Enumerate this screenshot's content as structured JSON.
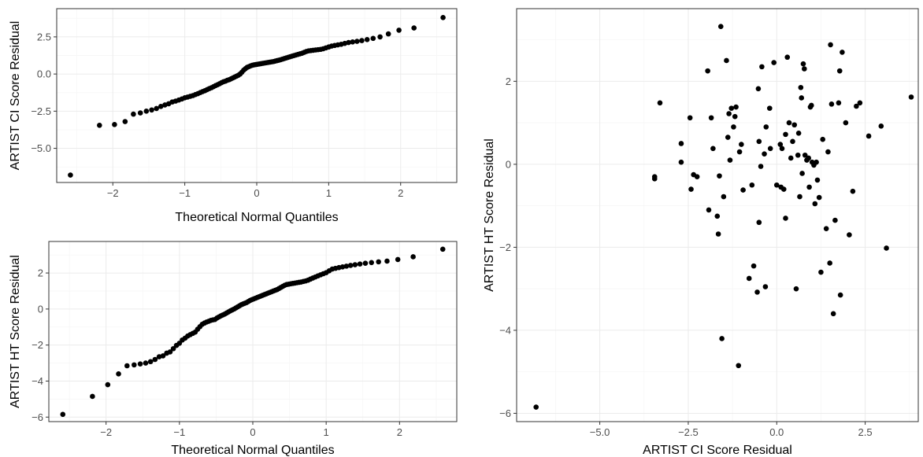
{
  "chart_data": [
    {
      "type": "scatter",
      "kind": "normal-qq",
      "xlabel": "Theoretical Normal Quantiles",
      "ylabel": "ARTIST CI Score Residual",
      "xlim": [
        -2.78,
        2.78
      ],
      "ylim": [
        -7.3,
        4.4
      ],
      "xticks": [
        -2,
        -1,
        0,
        1,
        2
      ],
      "yticks": [
        -5.0,
        -2.5,
        0.0,
        2.5
      ],
      "ytick_labels": [
        "−5.0",
        "−2.5",
        "0.0",
        "2.5"
      ],
      "xtick_labels": [
        "−2",
        "−1",
        "0",
        "1",
        "2"
      ],
      "n_points": 104,
      "y": [
        -6.8,
        -3.45,
        -3.4,
        -3.2,
        -2.7,
        -2.62,
        -2.5,
        -2.42,
        -2.32,
        -2.18,
        -2.08,
        -2.0,
        -1.88,
        -1.82,
        -1.75,
        -1.68,
        -1.6,
        -1.55,
        -1.5,
        -1.45,
        -1.38,
        -1.32,
        -1.25,
        -1.18,
        -1.12,
        -1.05,
        -0.98,
        -0.92,
        -0.85,
        -0.78,
        -0.72,
        -0.65,
        -0.58,
        -0.52,
        -0.48,
        -0.42,
        -0.38,
        -0.32,
        -0.26,
        -0.2,
        -0.14,
        -0.08,
        0.0,
        0.12,
        0.26,
        0.36,
        0.45,
        0.5,
        0.55,
        0.59,
        0.62,
        0.64,
        0.66,
        0.68,
        0.7,
        0.72,
        0.74,
        0.76,
        0.78,
        0.8,
        0.82,
        0.84,
        0.87,
        0.9,
        0.93,
        0.96,
        1.0,
        1.04,
        1.08,
        1.12,
        1.16,
        1.2,
        1.24,
        1.28,
        1.32,
        1.36,
        1.4,
        1.46,
        1.52,
        1.56,
        1.58,
        1.6,
        1.62,
        1.64,
        1.66,
        1.7,
        1.76,
        1.82,
        1.88,
        1.92,
        1.96,
        2.0,
        2.06,
        2.12,
        2.16,
        2.2,
        2.25,
        2.32,
        2.4,
        2.5,
        2.7,
        2.95,
        3.1,
        3.8
      ]
    },
    {
      "type": "scatter",
      "kind": "normal-qq",
      "xlabel": "Theoretical Normal Quantiles",
      "ylabel": "ARTIST HT Score Residual",
      "xlim": [
        -2.78,
        2.78
      ],
      "ylim": [
        -6.25,
        3.75
      ],
      "xticks": [
        -2,
        -1,
        0,
        1,
        2
      ],
      "yticks": [
        -6,
        -4,
        -2,
        0,
        2
      ],
      "ytick_labels": [
        "−6",
        "−4",
        "−2",
        "0",
        "2"
      ],
      "xtick_labels": [
        "−2",
        "−1",
        "0",
        "1",
        "2"
      ],
      "n_points": 104,
      "y": [
        -5.85,
        -4.85,
        -4.2,
        -3.6,
        -3.15,
        -3.1,
        -3.05,
        -3.0,
        -2.92,
        -2.8,
        -2.65,
        -2.6,
        -2.45,
        -2.38,
        -2.2,
        -2.02,
        -1.9,
        -1.72,
        -1.62,
        -1.5,
        -1.42,
        -1.35,
        -1.28,
        -1.12,
        -0.98,
        -0.85,
        -0.78,
        -0.72,
        -0.68,
        -0.63,
        -0.6,
        -0.58,
        -0.5,
        -0.44,
        -0.38,
        -0.33,
        -0.28,
        -0.22,
        -0.16,
        -0.1,
        -0.05,
        0.0,
        0.06,
        0.12,
        0.18,
        0.24,
        0.28,
        0.32,
        0.36,
        0.42,
        0.48,
        0.52,
        0.56,
        0.6,
        0.64,
        0.68,
        0.72,
        0.76,
        0.8,
        0.84,
        0.88,
        0.92,
        0.96,
        1.0,
        1.04,
        1.08,
        1.14,
        1.2,
        1.26,
        1.32,
        1.36,
        1.38,
        1.4,
        1.42,
        1.44,
        1.46,
        1.48,
        1.5,
        1.53,
        1.56,
        1.6,
        1.66,
        1.72,
        1.78,
        1.84,
        1.9,
        1.96,
        2.02,
        2.12,
        2.22,
        2.26,
        2.3,
        2.34,
        2.38,
        2.42,
        2.46,
        2.5,
        2.54,
        2.58,
        2.62,
        2.66,
        2.75,
        2.9,
        3.32
      ]
    },
    {
      "type": "scatter",
      "xlabel": "ARTIST CI Score Residual",
      "ylabel": "ARTIST HT Score Residual",
      "xlim": [
        -7.35,
        4.0
      ],
      "ylim": [
        -6.2,
        3.75
      ],
      "xticks": [
        -5.0,
        -2.5,
        0.0,
        2.5
      ],
      "yticks": [
        -6,
        -4,
        -2,
        0,
        2
      ],
      "xtick_labels": [
        "−5.0",
        "−2.5",
        "0.0",
        "2.5"
      ],
      "ytick_labels": [
        "−6",
        "−4",
        "−2",
        "0",
        "2"
      ],
      "points": [
        [
          -6.8,
          -5.85
        ],
        [
          -3.45,
          -0.3
        ],
        [
          -3.45,
          -0.35
        ],
        [
          -3.3,
          1.48
        ],
        [
          -2.7,
          0.5
        ],
        [
          -2.7,
          0.05
        ],
        [
          -2.45,
          1.12
        ],
        [
          -2.42,
          -0.6
        ],
        [
          -2.35,
          -0.25
        ],
        [
          -2.25,
          -0.3
        ],
        [
          -1.95,
          2.25
        ],
        [
          -1.92,
          -1.1
        ],
        [
          -1.85,
          1.12
        ],
        [
          -1.8,
          0.38
        ],
        [
          -1.68,
          -1.25
        ],
        [
          -1.65,
          -1.68
        ],
        [
          -1.62,
          -0.28
        ],
        [
          -1.58,
          3.32
        ],
        [
          -1.55,
          -4.2
        ],
        [
          -1.5,
          -0.78
        ],
        [
          -1.42,
          2.5
        ],
        [
          -1.38,
          0.65
        ],
        [
          -1.35,
          1.22
        ],
        [
          -1.32,
          0.1
        ],
        [
          -1.28,
          1.35
        ],
        [
          -1.22,
          0.9
        ],
        [
          -1.18,
          1.15
        ],
        [
          -1.15,
          1.38
        ],
        [
          -1.08,
          -4.85
        ],
        [
          -1.05,
          0.3
        ],
        [
          -1.0,
          0.48
        ],
        [
          -0.95,
          -0.62
        ],
        [
          -0.78,
          -2.75
        ],
        [
          -0.7,
          -0.5
        ],
        [
          -0.65,
          -2.45
        ],
        [
          -0.55,
          -3.08
        ],
        [
          -0.52,
          1.82
        ],
        [
          -0.5,
          0.55
        ],
        [
          -0.5,
          -1.4
        ],
        [
          -0.45,
          -0.05
        ],
        [
          -0.42,
          2.35
        ],
        [
          -0.35,
          0.25
        ],
        [
          -0.32,
          -2.95
        ],
        [
          -0.3,
          0.9
        ],
        [
          -0.2,
          1.35
        ],
        [
          -0.18,
          0.38
        ],
        [
          -0.08,
          2.45
        ],
        [
          0.0,
          -0.5
        ],
        [
          0.1,
          0.48
        ],
        [
          0.12,
          -0.55
        ],
        [
          0.15,
          0.38
        ],
        [
          0.2,
          -0.6
        ],
        [
          0.25,
          -1.3
        ],
        [
          0.25,
          0.72
        ],
        [
          0.3,
          2.58
        ],
        [
          0.35,
          1.0
        ],
        [
          0.4,
          0.15
        ],
        [
          0.45,
          0.55
        ],
        [
          0.5,
          0.95
        ],
        [
          0.55,
          -3.0
        ],
        [
          0.6,
          0.22
        ],
        [
          0.62,
          0.75
        ],
        [
          0.65,
          -0.78
        ],
        [
          0.68,
          1.85
        ],
        [
          0.7,
          1.6
        ],
        [
          0.72,
          -0.22
        ],
        [
          0.75,
          2.42
        ],
        [
          0.78,
          2.3
        ],
        [
          0.8,
          0.22
        ],
        [
          0.85,
          0.1
        ],
        [
          0.9,
          0.15
        ],
        [
          0.92,
          -0.55
        ],
        [
          0.95,
          1.38
        ],
        [
          0.98,
          1.42
        ],
        [
          1.0,
          0.05
        ],
        [
          1.05,
          -0.02
        ],
        [
          1.08,
          -0.95
        ],
        [
          1.12,
          0.05
        ],
        [
          1.15,
          -0.38
        ],
        [
          1.2,
          -0.8
        ],
        [
          1.25,
          -2.6
        ],
        [
          1.3,
          0.6
        ],
        [
          1.4,
          -1.55
        ],
        [
          1.45,
          0.3
        ],
        [
          1.5,
          -2.38
        ],
        [
          1.52,
          2.88
        ],
        [
          1.55,
          1.45
        ],
        [
          1.6,
          -3.6
        ],
        [
          1.65,
          -1.35
        ],
        [
          1.75,
          1.48
        ],
        [
          1.78,
          2.25
        ],
        [
          1.8,
          -3.15
        ],
        [
          1.85,
          2.7
        ],
        [
          1.95,
          1.0
        ],
        [
          2.05,
          -1.7
        ],
        [
          2.15,
          -0.65
        ],
        [
          2.25,
          1.4
        ],
        [
          2.35,
          1.48
        ],
        [
          2.6,
          0.68
        ],
        [
          2.95,
          0.92
        ],
        [
          3.1,
          -2.02
        ],
        [
          3.8,
          1.62
        ]
      ]
    }
  ]
}
